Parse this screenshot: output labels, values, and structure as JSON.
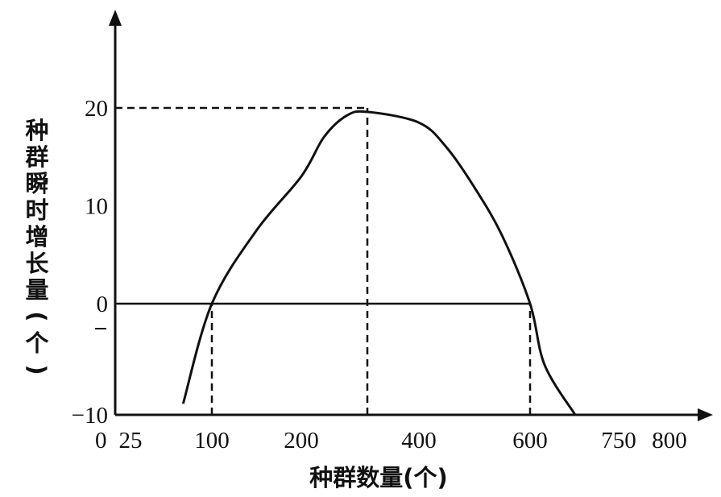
{
  "chart_data": {
    "type": "line",
    "xlabel": "种群数量(个)",
    "ylabel": "种群瞬时增长量(个)",
    "x_ticks": [
      "0",
      "25",
      "100",
      "200",
      "400",
      "600",
      "750",
      "800"
    ],
    "x_tick_values": [
      0,
      25,
      100,
      200,
      400,
      600,
      750,
      800
    ],
    "y_ticks": [
      "20",
      "10",
      "0",
      "−10"
    ],
    "y_tick_values": [
      20,
      10,
      0,
      -10
    ],
    "xlim": [
      0,
      800
    ],
    "ylim": [
      -10,
      27
    ],
    "grid": false,
    "legend": "none",
    "series": [
      {
        "x": [
          75,
          100,
          150,
          200,
          250,
          300,
          350,
          400,
          450,
          500,
          550,
          600,
          650,
          690
        ],
        "y": [
          -9,
          0,
          7.5,
          13,
          17,
          19.2,
          19.6,
          18.5,
          16,
          12,
          7,
          0,
          -5.5,
          -10
        ],
        "color": "#111111"
      }
    ],
    "reference_lines": [
      {
        "type": "horizontal",
        "y": 20,
        "x_from": 0,
        "x_to": 350,
        "style": "dashed"
      },
      {
        "type": "horizontal",
        "y": 0,
        "x_from": 0,
        "x_to": 600,
        "style": "solid"
      },
      {
        "type": "vertical",
        "x": 100,
        "y_from": -10,
        "y_to": 0,
        "style": "dashed"
      },
      {
        "type": "vertical",
        "x": 350,
        "y_from": -10,
        "y_to": 20,
        "style": "dashed"
      },
      {
        "type": "vertical",
        "x": 600,
        "y_from": -10,
        "y_to": 0,
        "style": "dashed"
      }
    ]
  }
}
